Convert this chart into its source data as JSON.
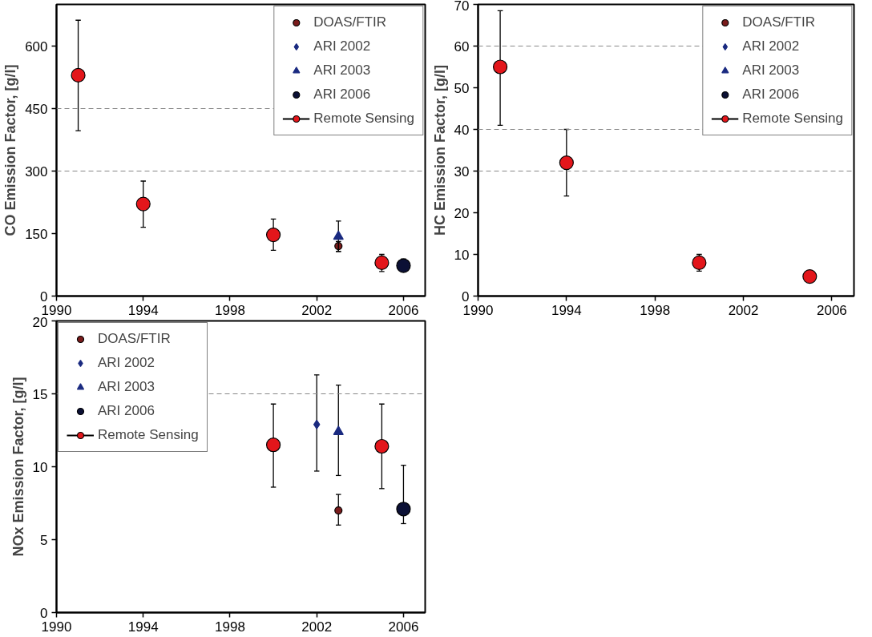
{
  "chart_data": [
    {
      "type": "scatter",
      "ylabel": "CO Emission Factor, [g/l]",
      "xlim": [
        1990,
        2007
      ],
      "xticks": [
        1990,
        1994,
        1998,
        2002,
        2006
      ],
      "ylim": [
        0,
        700
      ],
      "yticks": [
        0,
        150,
        300,
        450,
        600
      ],
      "legend": "top right",
      "ref_lines": [
        {
          "axis": "y",
          "value": 300,
          "color": "#888888",
          "line_style": "dashed"
        },
        {
          "axis": "y",
          "value": 450,
          "color": "#888888",
          "line_style": "dashed"
        }
      ],
      "series": [
        {
          "name": "DOAS/FTIR",
          "color": "#7a1c1c",
          "marker": "circle",
          "x": [
            2003
          ],
          "values": [
            120
          ],
          "errors": [
            [
              107,
              131
            ]
          ]
        },
        {
          "name": "ARI 2002",
          "color": "#1a2a80",
          "marker": "diamond"
        },
        {
          "name": "ARI 2003",
          "color": "#1a2a80",
          "marker": "triangle",
          "x": [
            2003
          ],
          "values": [
            143
          ],
          "errors": [
            [
              107,
              180
            ]
          ]
        },
        {
          "name": "ARI 2006",
          "color": "#0b1035",
          "marker": "circle",
          "x": [
            2006
          ],
          "values": [
            73
          ],
          "errors": [
            [
              59,
              89
            ]
          ]
        },
        {
          "name": "Remote Sensing",
          "color": "#e3161b",
          "marker": "circle",
          "x": [
            1991,
            1994,
            2000,
            2005
          ],
          "values": [
            530,
            221,
            147,
            80
          ],
          "errors": [
            [
              397,
              662
            ],
            [
              165,
              276
            ],
            [
              110,
              185
            ],
            [
              59,
              100
            ]
          ]
        }
      ]
    },
    {
      "type": "scatter",
      "ylabel": "HC Emission Factor, [g/l]",
      "xlim": [
        1990,
        2007
      ],
      "xticks": [
        1990,
        1994,
        1998,
        2002,
        2006
      ],
      "ylim": [
        0,
        70
      ],
      "yticks": [
        0,
        10,
        20,
        30,
        40,
        50,
        60,
        70
      ],
      "legend": "top right",
      "ref_lines": [
        {
          "axis": "y",
          "value": 30,
          "color": "#888888",
          "line_style": "dashed"
        },
        {
          "axis": "y",
          "value": 40,
          "color": "#888888",
          "line_style": "dashed"
        },
        {
          "axis": "y",
          "value": 60,
          "color": "#888888",
          "line_style": "dashed"
        }
      ],
      "series": [
        {
          "name": "DOAS/FTIR",
          "color": "#7a1c1c",
          "marker": "circle"
        },
        {
          "name": "ARI 2002",
          "color": "#1a2a80",
          "marker": "diamond"
        },
        {
          "name": "ARI 2003",
          "color": "#1a2a80",
          "marker": "triangle"
        },
        {
          "name": "ARI 2006",
          "color": "#0b1035",
          "marker": "circle"
        },
        {
          "name": "Remote Sensing",
          "color": "#e3161b",
          "marker": "circle",
          "x": [
            1991,
            1994,
            2000,
            2005
          ],
          "values": [
            55,
            32,
            8,
            4.7
          ],
          "errors": [
            [
              41,
              68.5
            ],
            [
              24,
              40
            ],
            [
              6,
              10
            ],
            null
          ]
        }
      ]
    },
    {
      "type": "scatter",
      "ylabel": "NOx Emission Factor, [g/l]",
      "xlim": [
        1990,
        2007
      ],
      "xticks": [
        1990,
        1994,
        1998,
        2002,
        2006
      ],
      "ylim": [
        0,
        20
      ],
      "yticks": [
        0,
        5,
        10,
        15,
        20
      ],
      "legend": "top left",
      "ref_lines": [
        {
          "axis": "y",
          "value": 15,
          "color": "#888888",
          "line_style": "dashed"
        }
      ],
      "series": [
        {
          "name": "DOAS/FTIR",
          "color": "#7a1c1c",
          "marker": "circle",
          "x": [
            2003
          ],
          "values": [
            7.0
          ],
          "errors": [
            [
              6.0,
              8.1
            ]
          ]
        },
        {
          "name": "ARI 2002",
          "color": "#1a2a80",
          "marker": "diamond",
          "x": [
            2002
          ],
          "values": [
            12.9
          ],
          "errors": [
            [
              9.7,
              16.3
            ]
          ]
        },
        {
          "name": "ARI 2003",
          "color": "#1a2a80",
          "marker": "triangle",
          "x": [
            2003
          ],
          "values": [
            12.4
          ],
          "errors": [
            [
              9.4,
              15.6
            ]
          ]
        },
        {
          "name": "ARI 2006",
          "color": "#0b1035",
          "marker": "circle",
          "x": [
            2006
          ],
          "values": [
            7.1
          ],
          "errors": [
            [
              6.1,
              10.1
            ]
          ]
        },
        {
          "name": "Remote Sensing",
          "color": "#e3161b",
          "marker": "circle",
          "x": [
            2000,
            2005
          ],
          "values": [
            11.5,
            11.4
          ],
          "errors": [
            [
              8.6,
              14.3
            ],
            [
              8.5,
              14.3
            ]
          ]
        }
      ]
    }
  ]
}
